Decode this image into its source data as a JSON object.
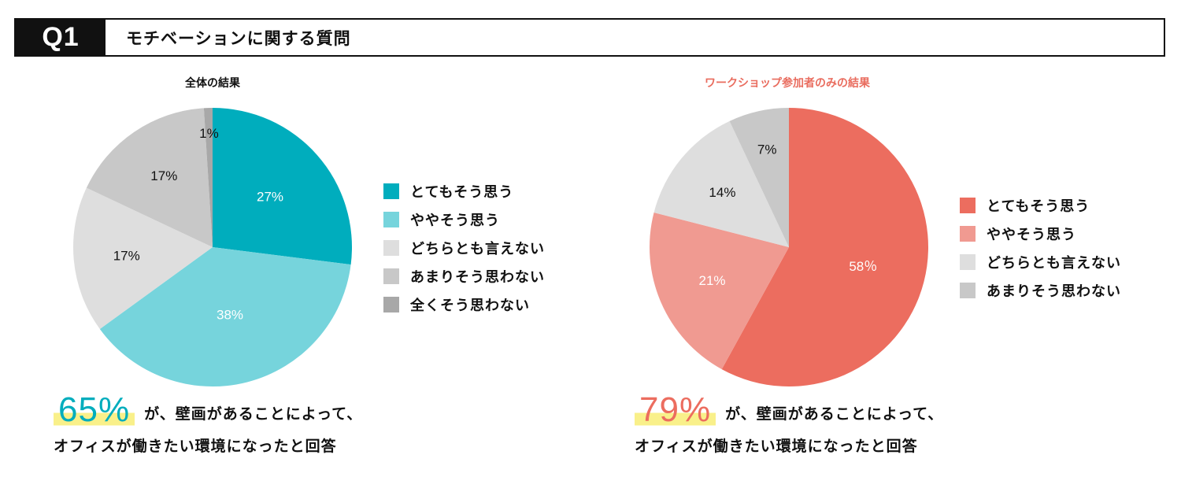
{
  "header": {
    "badge": "Q1",
    "title": "モチベーションに関する質問"
  },
  "chart_data": [
    {
      "type": "pie",
      "title": "全体の結果",
      "title_color": "#111111",
      "labels": [
        "とてもそう思う",
        "ややそう思う",
        "どちらとも言えない",
        "あまりそう思わない",
        "全くそう思わない"
      ],
      "values": [
        27,
        38,
        17,
        17,
        1
      ],
      "display_labels": [
        "27%",
        "38%",
        "17%",
        "17%",
        "1%"
      ],
      "colors": [
        "#00adbd",
        "#76d4dc",
        "#dedede",
        "#c8c8c8",
        "#a8a8a8"
      ],
      "label_colors": [
        "#ffffff",
        "#ffffff",
        "#111111",
        "#111111",
        "#111111"
      ],
      "legend_position": "right",
      "start_angle_deg": 0,
      "direction": "clockwise"
    },
    {
      "type": "pie",
      "title": "ワークショップ参加者のみの結果",
      "title_color": "#e96c5e",
      "labels": [
        "とてもそう思う",
        "ややそう思う",
        "どちらとも言えない",
        "あまりそう思わない"
      ],
      "values": [
        58,
        21,
        14,
        7
      ],
      "display_labels": [
        "58％",
        "21%",
        "14%",
        "7%"
      ],
      "colors": [
        "#ec6d5f",
        "#f09a91",
        "#dedede",
        "#c8c8c8"
      ],
      "label_colors": [
        "#ffffff",
        "#ffffff",
        "#111111",
        "#111111"
      ],
      "legend_position": "right",
      "start_angle_deg": 0,
      "direction": "clockwise"
    }
  ],
  "summaries": [
    {
      "percent": "65%",
      "percent_color": "#00adbd",
      "line1": "が、壁画があることによって、",
      "line2": "オフィスが働きたい環境になったと回答"
    },
    {
      "percent": "79%",
      "percent_color": "#ec6d5f",
      "line1": "が、壁画があることによって、",
      "line2": "オフィスが働きたい環境になったと回答"
    }
  ]
}
